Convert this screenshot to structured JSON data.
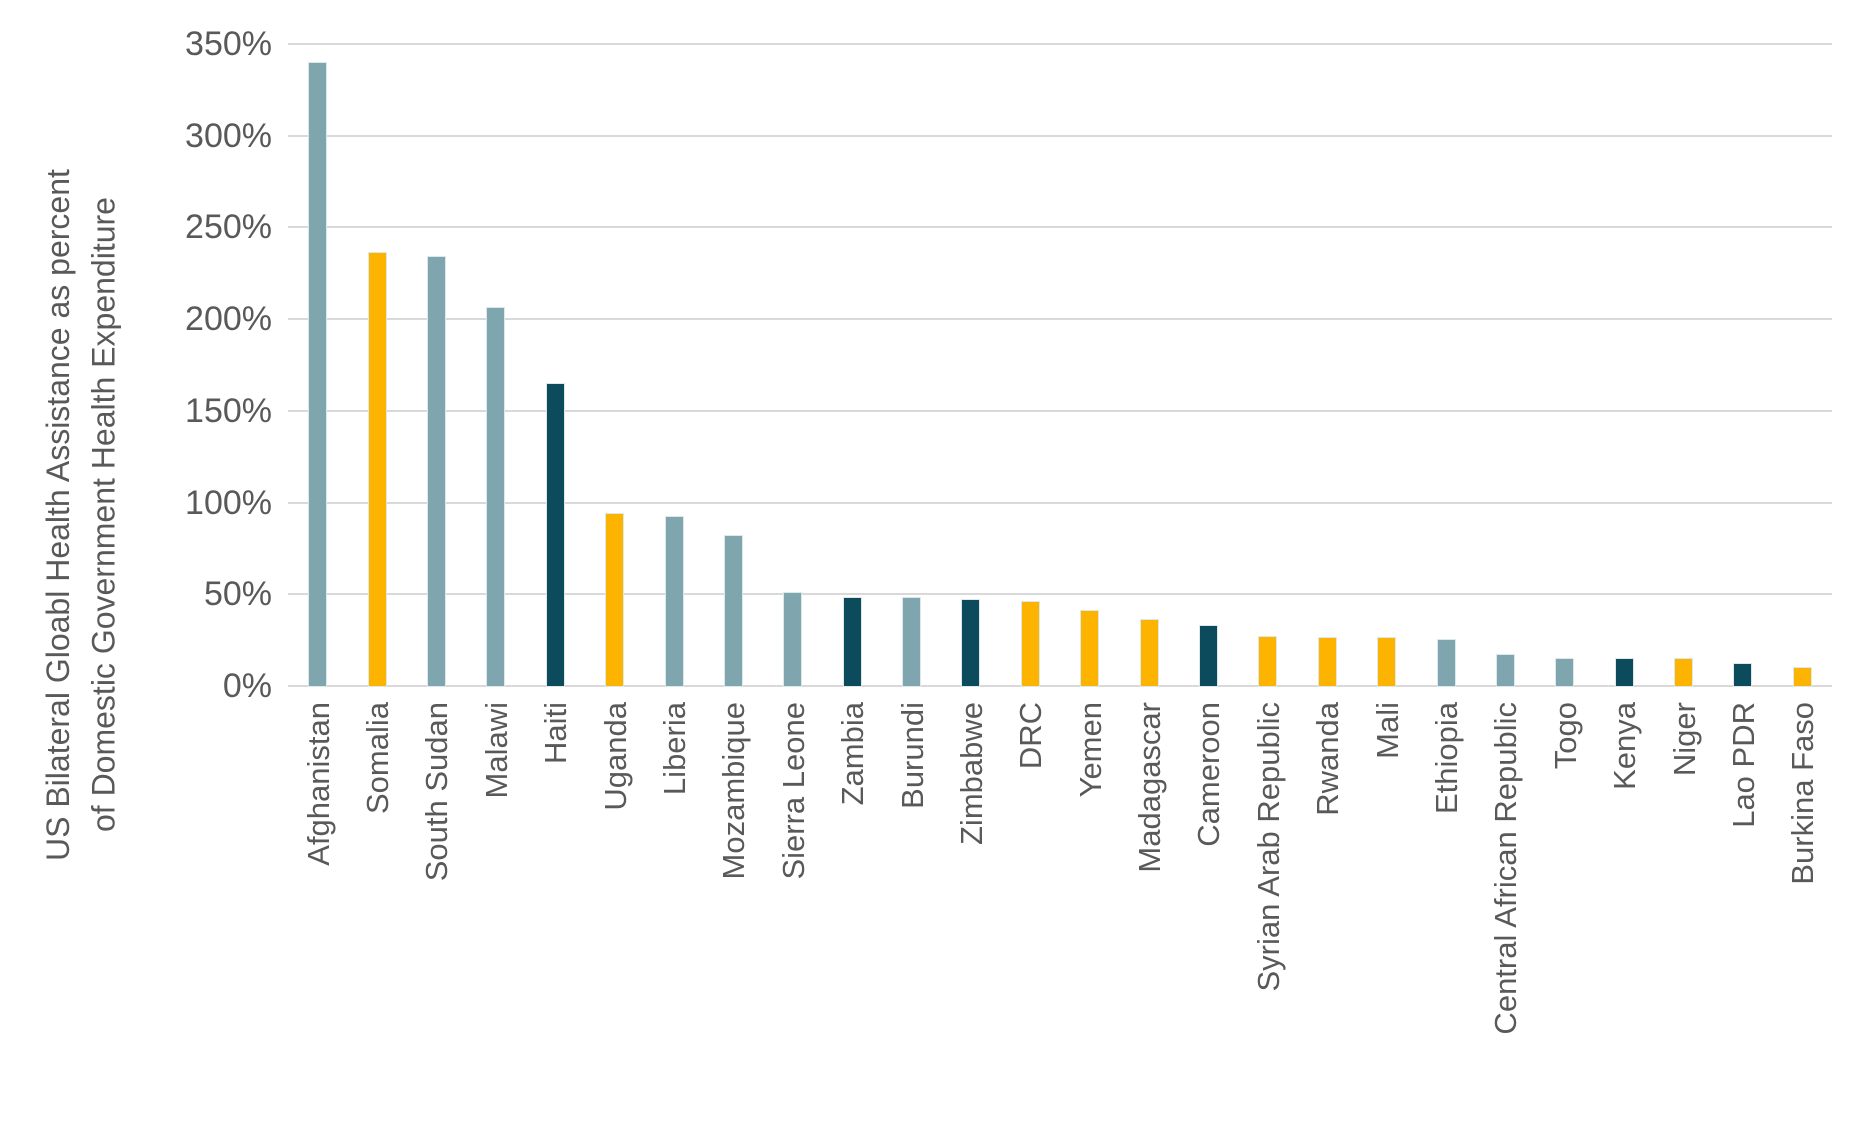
{
  "chart_data": {
    "type": "bar",
    "title": "",
    "ylabel_line1": "US Bilateral Gloabl Health Assistance as percent",
    "ylabel_line2": "of Domestic Government Health Expenditure",
    "xlabel": "",
    "categories": [
      "Afghanistan",
      "Somalia",
      "South Sudan",
      "Malawi",
      "Haiti",
      "Uganda",
      "Liberia",
      "Mozambique",
      "Sierra Leone",
      "Zambia",
      "Burundi",
      "Zimbabwe",
      "DRC",
      "Yemen",
      "Madagascar",
      "Cameroon",
      "Syrian Arab Republic",
      "Rwanda",
      "Mali",
      "Ethiopia",
      "Central African Republic",
      "Togo",
      "Kenya",
      "Niger",
      "Lao PDR",
      "Burkina Faso"
    ],
    "values": [
      341,
      237,
      235,
      207,
      166,
      95,
      93,
      83,
      52,
      49,
      49,
      48,
      47,
      42,
      37,
      34,
      28,
      27,
      27,
      26,
      18,
      16,
      16,
      16,
      13,
      11
    ],
    "value_unit": "%",
    "bar_colors": [
      "steel",
      "gold",
      "steel",
      "steel",
      "teal",
      "gold",
      "steel",
      "steel",
      "steel",
      "teal",
      "steel",
      "teal",
      "gold",
      "gold",
      "gold",
      "teal",
      "gold",
      "gold",
      "gold",
      "steel",
      "steel",
      "steel",
      "teal",
      "gold",
      "teal",
      "gold"
    ],
    "palette": {
      "steel": "#7FA6AE",
      "gold": "#FDB400",
      "teal": "#0B4B5C"
    },
    "yticks": [
      "350%",
      "300%",
      "250%",
      "200%",
      "150%",
      "100%",
      "50%",
      "0%"
    ],
    "ytick_values": [
      350,
      300,
      250,
      200,
      150,
      100,
      50,
      0
    ],
    "ylim": [
      0,
      350
    ],
    "grid": true,
    "gridline_color": "#D9D9D9",
    "axis_text_color": "#595959",
    "legend_position": "none"
  }
}
